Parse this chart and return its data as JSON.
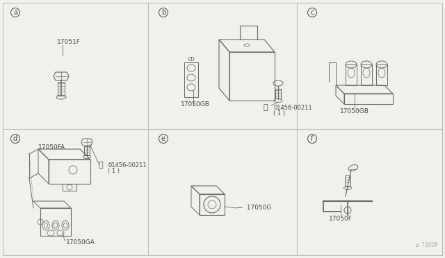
{
  "bg_color": "#f2f0ec",
  "line_color": "#666666",
  "text_color": "#444444",
  "border_color": "#bbbbbb",
  "watermark": "≥ 7300P",
  "sections": [
    "a",
    "b",
    "c",
    "d",
    "e",
    "f"
  ]
}
